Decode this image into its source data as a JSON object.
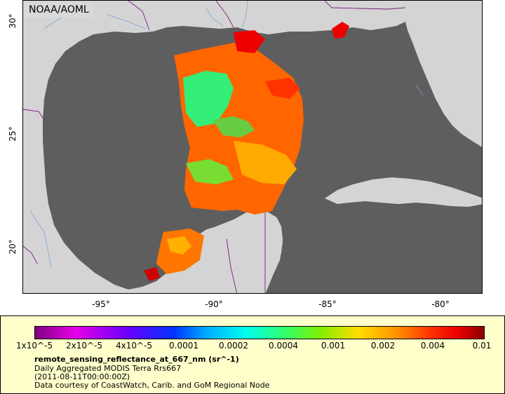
{
  "map": {
    "credit": "NOAA/AOML",
    "lat_ticks": [
      "30°",
      "25°",
      "20°"
    ],
    "lon_ticks": [
      "-95°",
      "-90°",
      "-85°",
      "-80°"
    ],
    "colors": {
      "land": "#d4d4d4",
      "ocean": "#5e5e5e",
      "rivers": "#7aa6d6",
      "borders": "#7b1d7b"
    }
  },
  "legend": {
    "scale_labels": [
      "1x10^-5",
      "2x10^-5",
      "4x10^-5",
      "0.0001",
      "0.0002",
      "0.0004",
      "0.001",
      "0.002",
      "0.004",
      "0.01"
    ],
    "title": "remote_sensing_reflectance_at_667_nm (sr^-1)",
    "subtitle": "Daily Aggregated MODIS Terra Rrs667",
    "date": "(2011-08-11T00:00:00Z)",
    "source": "Data courtesy of CoastWatch, Carib. and GoM Regional Node"
  }
}
